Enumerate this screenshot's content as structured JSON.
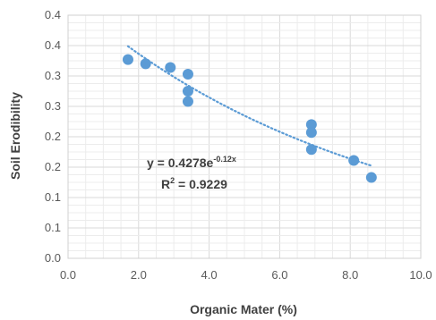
{
  "chart_data": {
    "type": "scatter",
    "xlabel": "Organic Mater (%)",
    "ylabel": "Soil Erodibility",
    "xlim": [
      0,
      10
    ],
    "ylim": [
      0,
      0.4
    ],
    "x_ticks": [
      "0.0",
      "2.0",
      "4.0",
      "6.0",
      "8.0",
      "10.0"
    ],
    "y_ticks": [
      "0.0",
      "0.1",
      "0.1",
      "0.2",
      "0.2",
      "0.3",
      "0.3",
      "0.4",
      "0.4"
    ],
    "grid": true,
    "legend": "none",
    "point_color": "#5b9bd5",
    "trendline_color": "#5b9bd5",
    "points": [
      {
        "x": 1.7,
        "y": 0.327
      },
      {
        "x": 2.2,
        "y": 0.32
      },
      {
        "x": 2.9,
        "y": 0.314
      },
      {
        "x": 3.4,
        "y": 0.303
      },
      {
        "x": 3.4,
        "y": 0.275
      },
      {
        "x": 3.4,
        "y": 0.258
      },
      {
        "x": 6.9,
        "y": 0.22
      },
      {
        "x": 6.9,
        "y": 0.207
      },
      {
        "x": 6.9,
        "y": 0.179
      },
      {
        "x": 8.1,
        "y": 0.161
      },
      {
        "x": 8.6,
        "y": 0.133
      }
    ],
    "trendline": {
      "type": "exponential",
      "a": 0.4278,
      "b": -0.12,
      "x_start": 1.7,
      "x_end": 8.6,
      "style": "dotted"
    },
    "annotations": {
      "equation_base": "y = 0.4278e",
      "equation_exp": "-0.12x",
      "r2_base": "R",
      "r2_sup": "2",
      "r2_value": " = 0.9229"
    }
  }
}
